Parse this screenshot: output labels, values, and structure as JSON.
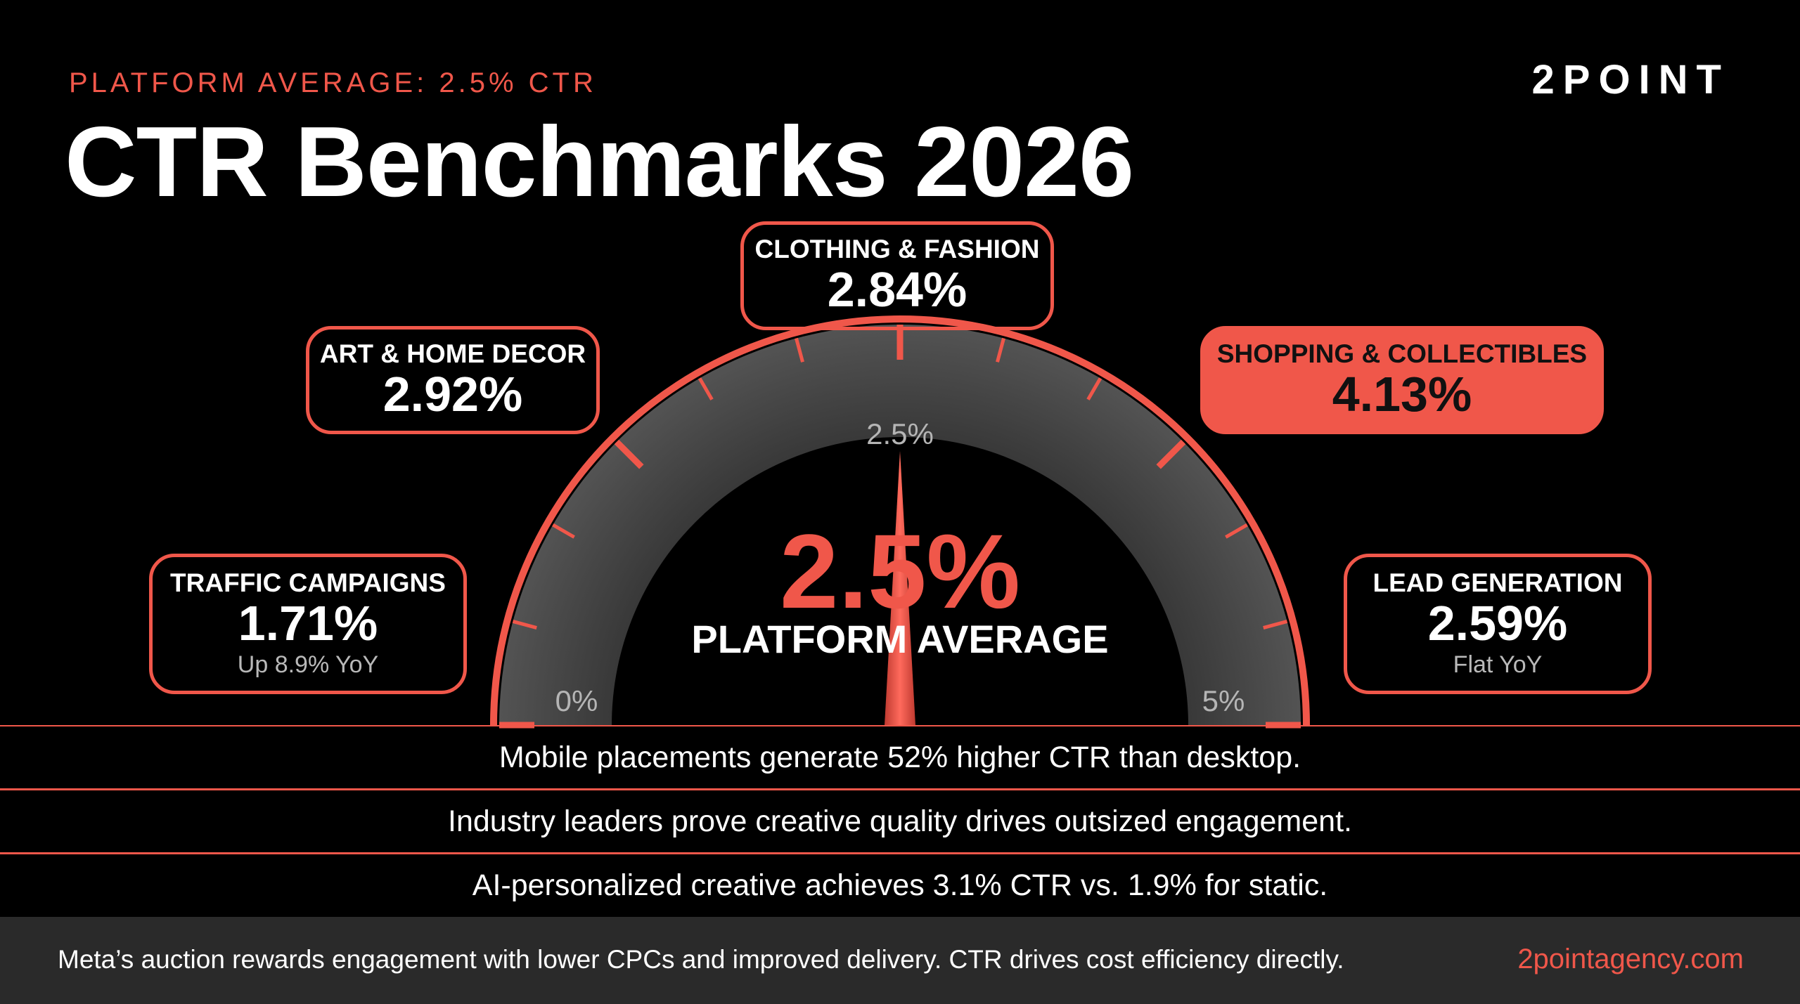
{
  "header": {
    "kicker": "PLATFORM AVERAGE: 2.5% CTR",
    "title": "CTR Benchmarks 2026",
    "logo": "2POINT"
  },
  "colors": {
    "accent": "#f0574a",
    "track": "#4a4a4a",
    "footer_bg": "#2a2a2a"
  },
  "chart_data": {
    "type": "gauge",
    "min": 0,
    "max": 5,
    "value": 2.5,
    "unit": "%",
    "tick_labels": [
      {
        "value": 0,
        "text": "0%"
      },
      {
        "value": 2.5,
        "text": "2.5%"
      },
      {
        "value": 5,
        "text": "5%"
      }
    ],
    "center_value": "2.5%",
    "center_label": "PLATFORM AVERAGE",
    "categories": [
      {
        "label": "TRAFFIC CAMPAIGNS",
        "value": 1.71,
        "display": "1.71%",
        "note": "Up 8.9% YoY"
      },
      {
        "label": "ART & HOME DECOR",
        "value": 2.92,
        "display": "2.92%"
      },
      {
        "label": "CLOTHING & FASHION",
        "value": 2.84,
        "display": "2.84%"
      },
      {
        "label": "SHOPPING & COLLECTIBLES",
        "value": 4.13,
        "display": "4.13%",
        "highlight": true
      },
      {
        "label": "LEAD GENERATION",
        "value": 2.59,
        "display": "2.59%",
        "note": "Flat YoY"
      }
    ]
  },
  "insights": [
    "Mobile placements generate 52% higher CTR than desktop.",
    "Industry leaders prove creative quality drives outsized engagement.",
    "AI-personalized creative achieves 3.1% CTR vs. 1.9% for static."
  ],
  "footer": {
    "text": "Meta’s auction rewards engagement with lower CPCs and improved delivery. CTR drives cost efficiency directly.",
    "link": "2pointagency.com"
  }
}
